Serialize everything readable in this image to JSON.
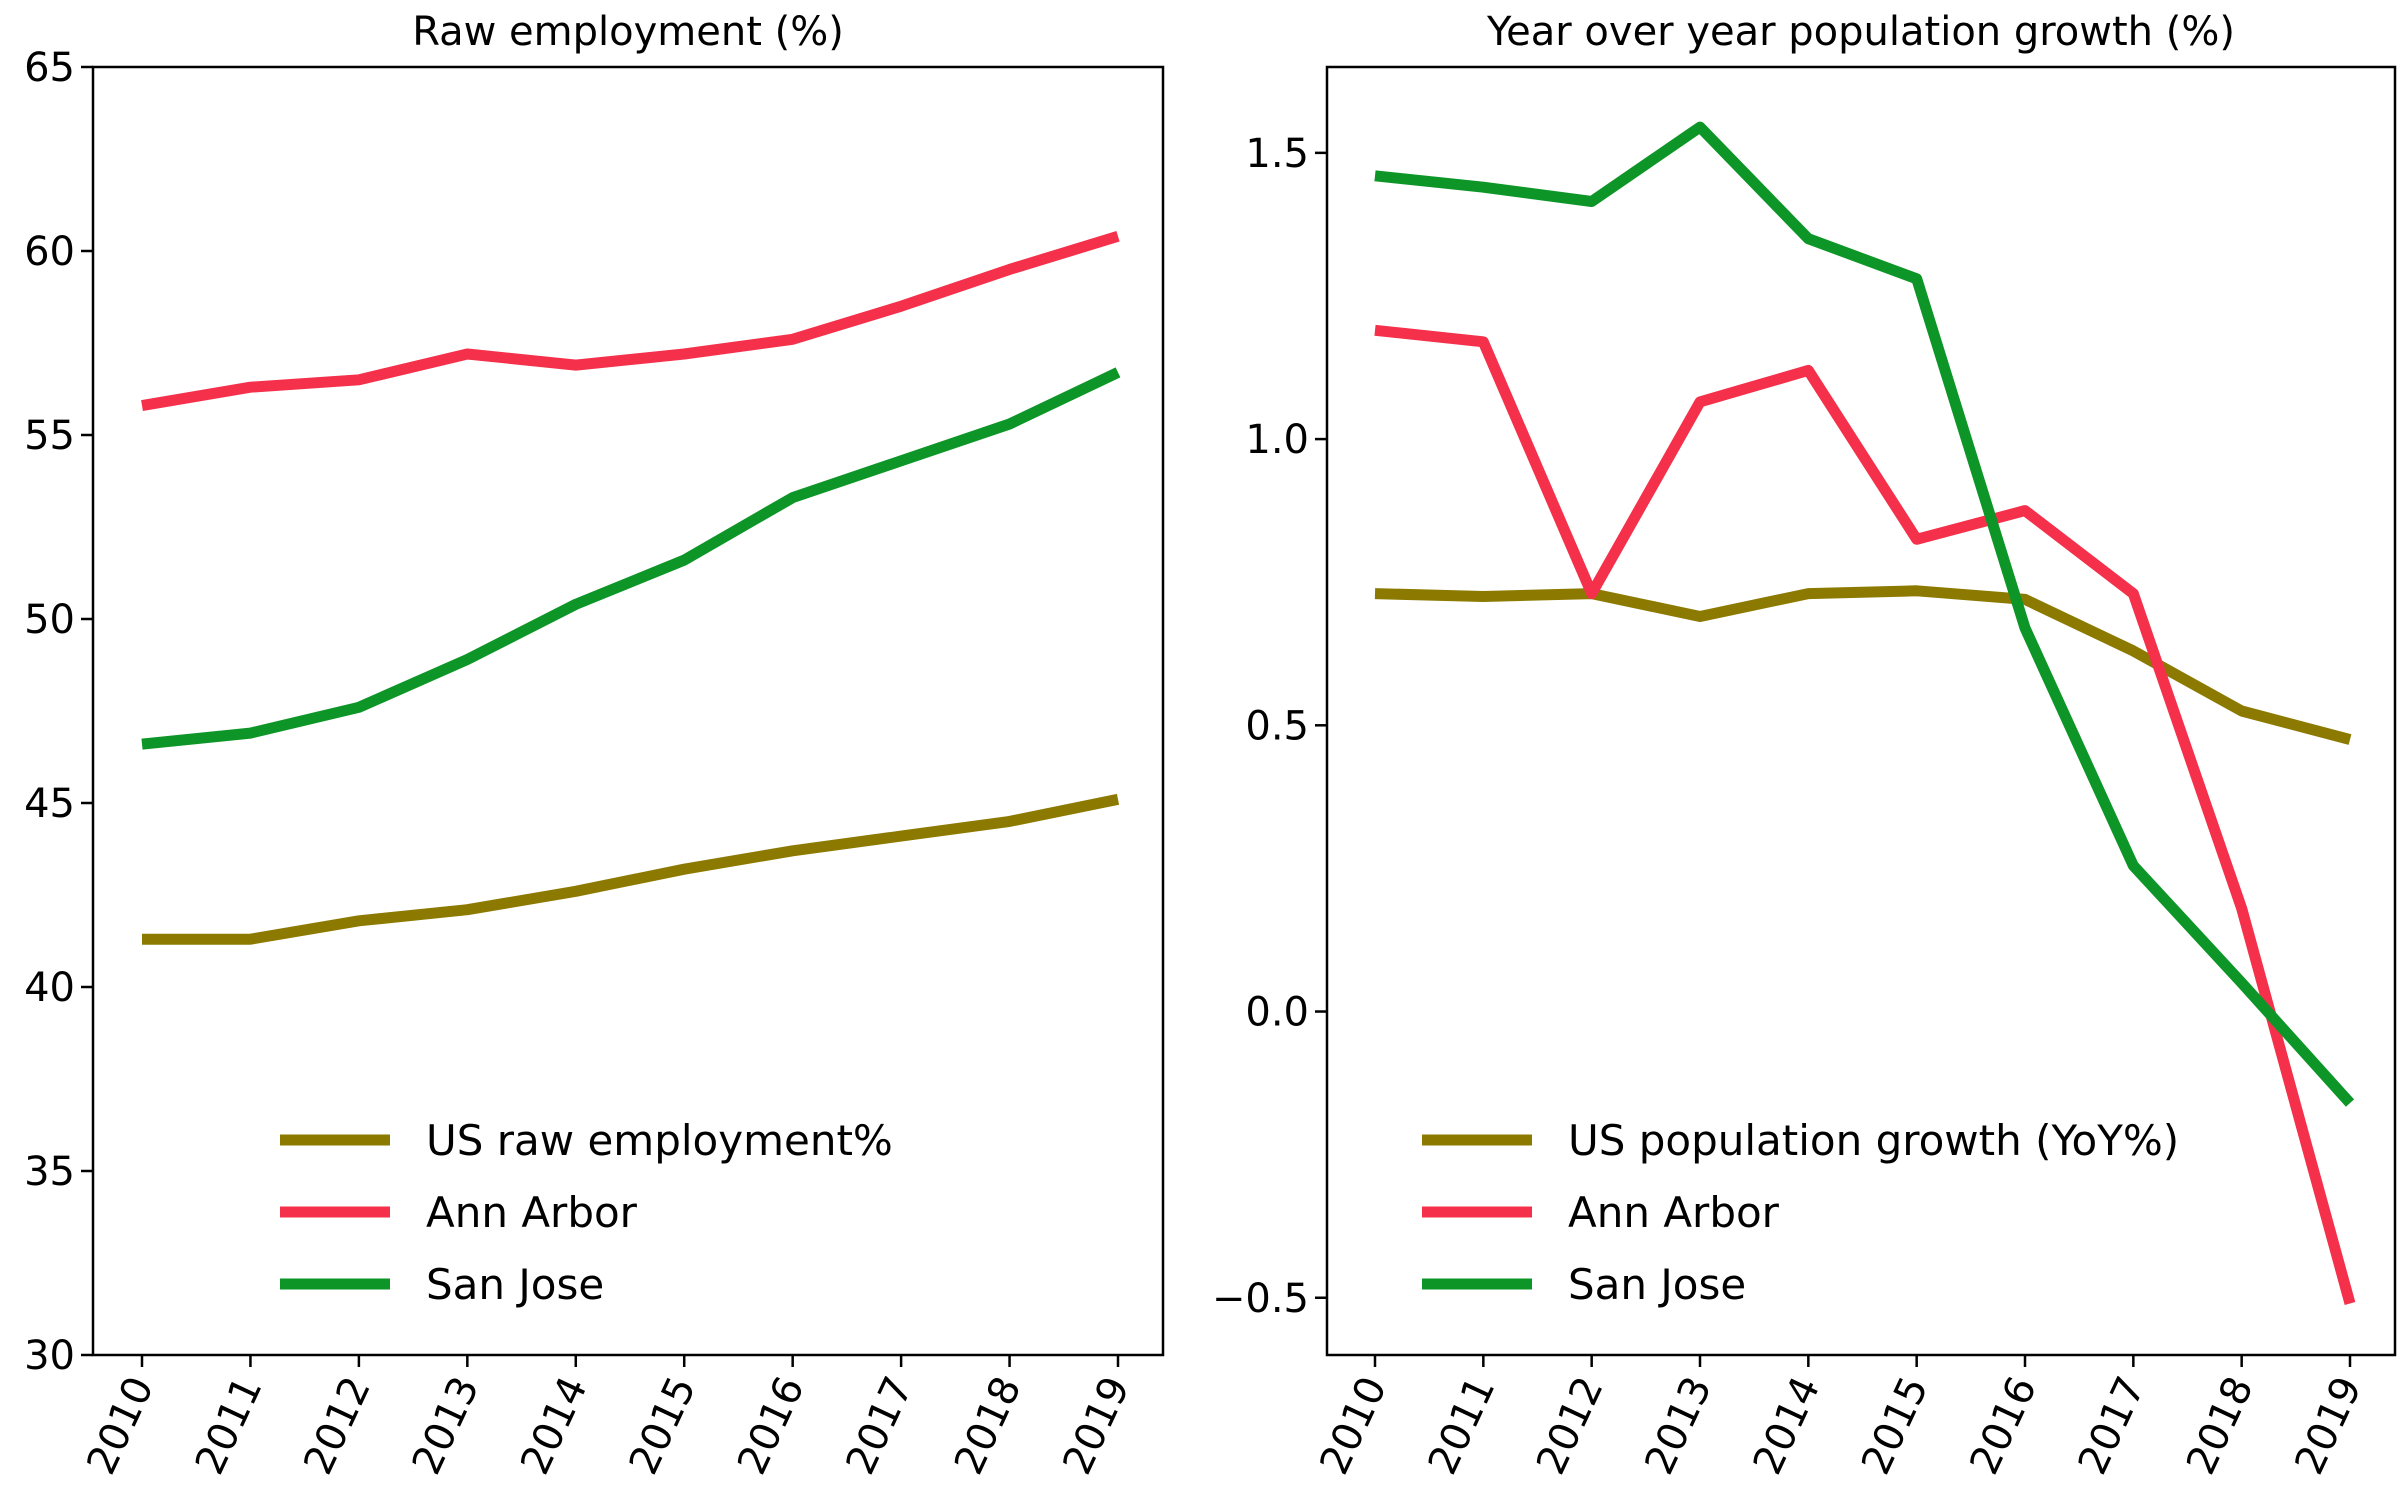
{
  "chart_data": [
    {
      "type": "line",
      "title": "Raw employment (%)",
      "x": [
        "2010",
        "2011",
        "2012",
        "2013",
        "2014",
        "2015",
        "2016",
        "2017",
        "2018",
        "2019"
      ],
      "ylim": [
        30,
        65
      ],
      "yticks": [
        30,
        35,
        40,
        45,
        50,
        55,
        60,
        65
      ],
      "ytick_labels": [
        "30",
        "35",
        "40",
        "45",
        "50",
        "55",
        "60",
        "65"
      ],
      "grid": false,
      "legend_placement": "lower-center",
      "series": [
        {
          "name": "US raw employment%",
          "color": "#8c7a00",
          "values": [
            41.3,
            41.3,
            41.8,
            42.1,
            42.6,
            43.2,
            43.7,
            44.1,
            44.5,
            45.1
          ]
        },
        {
          "name": "Ann Arbor",
          "color": "#f5304b",
          "values": [
            55.8,
            56.3,
            56.5,
            57.2,
            56.9,
            57.2,
            57.6,
            58.5,
            59.5,
            60.4
          ]
        },
        {
          "name": "San Jose",
          "color": "#0d9627",
          "values": [
            46.6,
            46.9,
            47.6,
            48.9,
            50.4,
            51.6,
            53.3,
            54.3,
            55.3,
            56.7
          ]
        }
      ]
    },
    {
      "type": "line",
      "title": "Year over year population growth (%)",
      "x": [
        "2010",
        "2011",
        "2012",
        "2013",
        "2014",
        "2015",
        "2016",
        "2017",
        "2018",
        "2019"
      ],
      "ylim": [
        -0.6,
        1.65
      ],
      "yticks": [
        -0.5,
        0,
        0.5,
        1,
        1.5
      ],
      "ytick_labels": [
        "−0.5",
        "0.0",
        "0.5",
        "1.0",
        "1.5"
      ],
      "grid": false,
      "legend_placement": "lower-center",
      "series": [
        {
          "name": "US population growth (YoY%)",
          "color": "#8c7a00",
          "values": [
            0.73,
            0.725,
            0.73,
            0.69,
            0.73,
            0.735,
            0.72,
            0.63,
            0.525,
            0.475
          ]
        },
        {
          "name": "Ann Arbor",
          "color": "#f5304b",
          "values": [
            1.19,
            1.17,
            0.73,
            1.065,
            1.12,
            0.825,
            0.875,
            0.73,
            0.18,
            -0.51
          ]
        },
        {
          "name": "San Jose",
          "color": "#0d9627",
          "values": [
            1.46,
            1.44,
            1.415,
            1.545,
            1.35,
            1.28,
            0.67,
            0.255,
            0.05,
            -0.16
          ]
        }
      ]
    }
  ]
}
